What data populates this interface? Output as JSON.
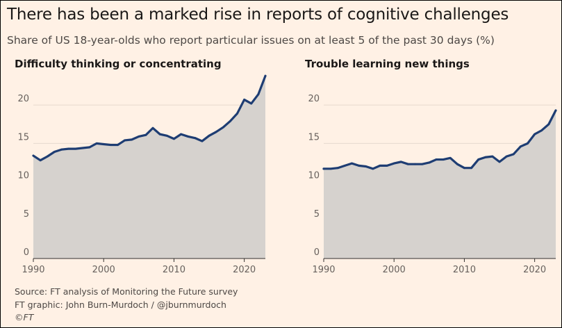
{
  "title": "There has been a marked rise in reports of cognitive challenges",
  "subtitle": "Share of US 18-year-olds who report particular issues on at least 5 of the past 30 days (%)",
  "footer": {
    "source": "Source: FT analysis of Monitoring the Future survey",
    "graphic": "FT graphic: John Burn-Murdoch / @jburnmurdoch",
    "copyright": "©FT"
  },
  "colors": {
    "background": "#fff1e5",
    "line": "#1e3d73",
    "area": "#d6d2ce",
    "grid": "#e6d9ce"
  },
  "chart_data": [
    {
      "type": "area",
      "title": "Difficulty thinking or concentrating",
      "xlabel": "",
      "ylabel": "",
      "xlim": [
        1990,
        2023
      ],
      "ylim": [
        0,
        24
      ],
      "x_ticks": [
        "1990",
        "2000",
        "2010",
        "2020"
      ],
      "y_ticks": [
        "0",
        "5",
        "10",
        "15",
        "20"
      ],
      "grid": true,
      "x": [
        1990,
        1991,
        1992,
        1993,
        1994,
        1995,
        1996,
        1997,
        1998,
        1999,
        2000,
        2001,
        2002,
        2003,
        2004,
        2005,
        2006,
        2007,
        2008,
        2009,
        2010,
        2011,
        2012,
        2013,
        2014,
        2015,
        2016,
        2017,
        2018,
        2019,
        2020,
        2021,
        2022,
        2023
      ],
      "values": [
        13.4,
        12.8,
        13.3,
        13.9,
        14.2,
        14.3,
        14.3,
        14.4,
        14.5,
        15.0,
        14.9,
        14.8,
        14.8,
        15.4,
        15.5,
        15.9,
        16.1,
        17.0,
        16.2,
        16.0,
        15.6,
        16.2,
        15.9,
        15.7,
        15.3,
        16.0,
        16.5,
        17.1,
        17.9,
        18.9,
        20.7,
        20.2,
        21.4,
        23.8
      ]
    },
    {
      "type": "area",
      "title": "Trouble learning new things",
      "xlabel": "",
      "ylabel": "",
      "xlim": [
        1990,
        2023
      ],
      "ylim": [
        0,
        24
      ],
      "x_ticks": [
        "1990",
        "2000",
        "2010",
        "2020"
      ],
      "y_ticks": [
        "0",
        "5",
        "10",
        "15",
        "20"
      ],
      "grid": true,
      "x": [
        1990,
        1991,
        1992,
        1993,
        1994,
        1995,
        1996,
        1997,
        1998,
        1999,
        2000,
        2001,
        2002,
        2003,
        2004,
        2005,
        2006,
        2007,
        2008,
        2009,
        2010,
        2011,
        2012,
        2013,
        2014,
        2015,
        2016,
        2017,
        2018,
        2019,
        2020,
        2021,
        2022,
        2023
      ],
      "values": [
        11.7,
        11.7,
        11.8,
        12.1,
        12.4,
        12.1,
        12.0,
        11.7,
        12.1,
        12.1,
        12.4,
        12.6,
        12.3,
        12.3,
        12.3,
        12.5,
        12.9,
        12.9,
        13.1,
        12.3,
        11.8,
        11.8,
        12.9,
        13.2,
        13.3,
        12.6,
        13.3,
        13.6,
        14.6,
        15.0,
        16.2,
        16.7,
        17.5,
        19.3
      ]
    }
  ]
}
